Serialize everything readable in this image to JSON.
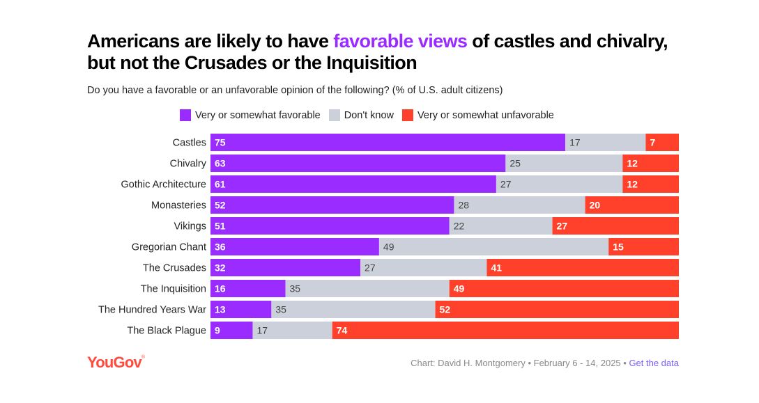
{
  "header": {
    "title_pre": "Americans are likely to have ",
    "title_highlight": "favorable views",
    "title_post": " of castles and chivalry, but not the Crusades or the Inquisition",
    "subtitle": "Do you have a favorable or an unfavorable opinion of the following? (% of U.S. adult citizens)"
  },
  "legend": [
    {
      "label": "Very or somewhat favorable",
      "color": "#9b2cff"
    },
    {
      "label": "Don't know",
      "color": "#ccd0da"
    },
    {
      "label": "Very or somewhat unfavorable",
      "color": "#ff412b"
    }
  ],
  "footer": {
    "logo": "YouGov",
    "logo_mark": "®",
    "credit": "Chart: David H. Montgomery • February 6 - 14, 2025 • ",
    "link": "Get the data",
    "link_color": "#7b5cff"
  },
  "chart_data": {
    "type": "bar",
    "orientation": "horizontal",
    "stacked": true,
    "title": "Americans are likely to have favorable views of castles and chivalry, but not the Crusades or the Inquisition",
    "subtitle": "Do you have a favorable or an unfavorable opinion of the following? (% of U.S. adult citizens)",
    "xlabel": "",
    "ylabel": "",
    "xlim": [
      0,
      100
    ],
    "grid": false,
    "legend_position": "top",
    "categories": [
      "Castles",
      "Chivalry",
      "Gothic Architecture",
      "Monasteries",
      "Vikings",
      "Gregorian Chant",
      "The Crusades",
      "The Inquisition",
      "The Hundred Years War",
      "The Black Plague"
    ],
    "series": [
      {
        "name": "Very or somewhat favorable",
        "color": "#9b2cff",
        "label_color": "#ffffff",
        "values": [
          75,
          63,
          61,
          52,
          51,
          36,
          32,
          16,
          13,
          9
        ]
      },
      {
        "name": "Don't know",
        "color": "#ccd0da",
        "label_color": "#444444",
        "values": [
          17,
          25,
          27,
          28,
          22,
          49,
          27,
          35,
          35,
          17
        ]
      },
      {
        "name": "Very or somewhat unfavorable",
        "color": "#ff412b",
        "label_color": "#ffffff",
        "values": [
          7,
          12,
          12,
          20,
          27,
          15,
          41,
          49,
          52,
          74
        ]
      }
    ]
  }
}
